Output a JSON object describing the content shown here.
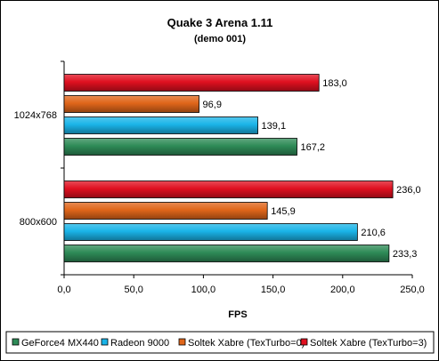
{
  "chart_data": {
    "type": "bar",
    "orientation": "horizontal",
    "title": "Quake 3 Arena 1.11",
    "subtitle": "(demo 001)",
    "xlabel": "FPS",
    "ylabel": "",
    "xlim": [
      0,
      250
    ],
    "x_ticks": [
      "0,0",
      "50,0",
      "100,0",
      "150,0",
      "200,0",
      "250,0"
    ],
    "grid": false,
    "legend_position": "bottom",
    "categories": [
      "1024x768",
      "800x600"
    ],
    "series": [
      {
        "name": "GeForce4 MX440",
        "color": "#2e8b57",
        "values": [
          167.2,
          233.3
        ],
        "labels": [
          "167,2",
          "233,3"
        ]
      },
      {
        "name": "Radeon 9000",
        "color": "#1ab4e8",
        "values": [
          139.1,
          210.6
        ],
        "labels": [
          "139,1",
          "210,6"
        ]
      },
      {
        "name": "Soltek Xabre (TexTurbo=0)",
        "color": "#e0661a",
        "values": [
          96.9,
          145.9
        ],
        "labels": [
          "96,9",
          "145,9"
        ]
      },
      {
        "name": "Soltek Xabre (TexTurbo=3)",
        "color": "#e01020",
        "values": [
          183.0,
          236.0
        ],
        "labels": [
          "183,0",
          "236,0"
        ]
      }
    ]
  }
}
